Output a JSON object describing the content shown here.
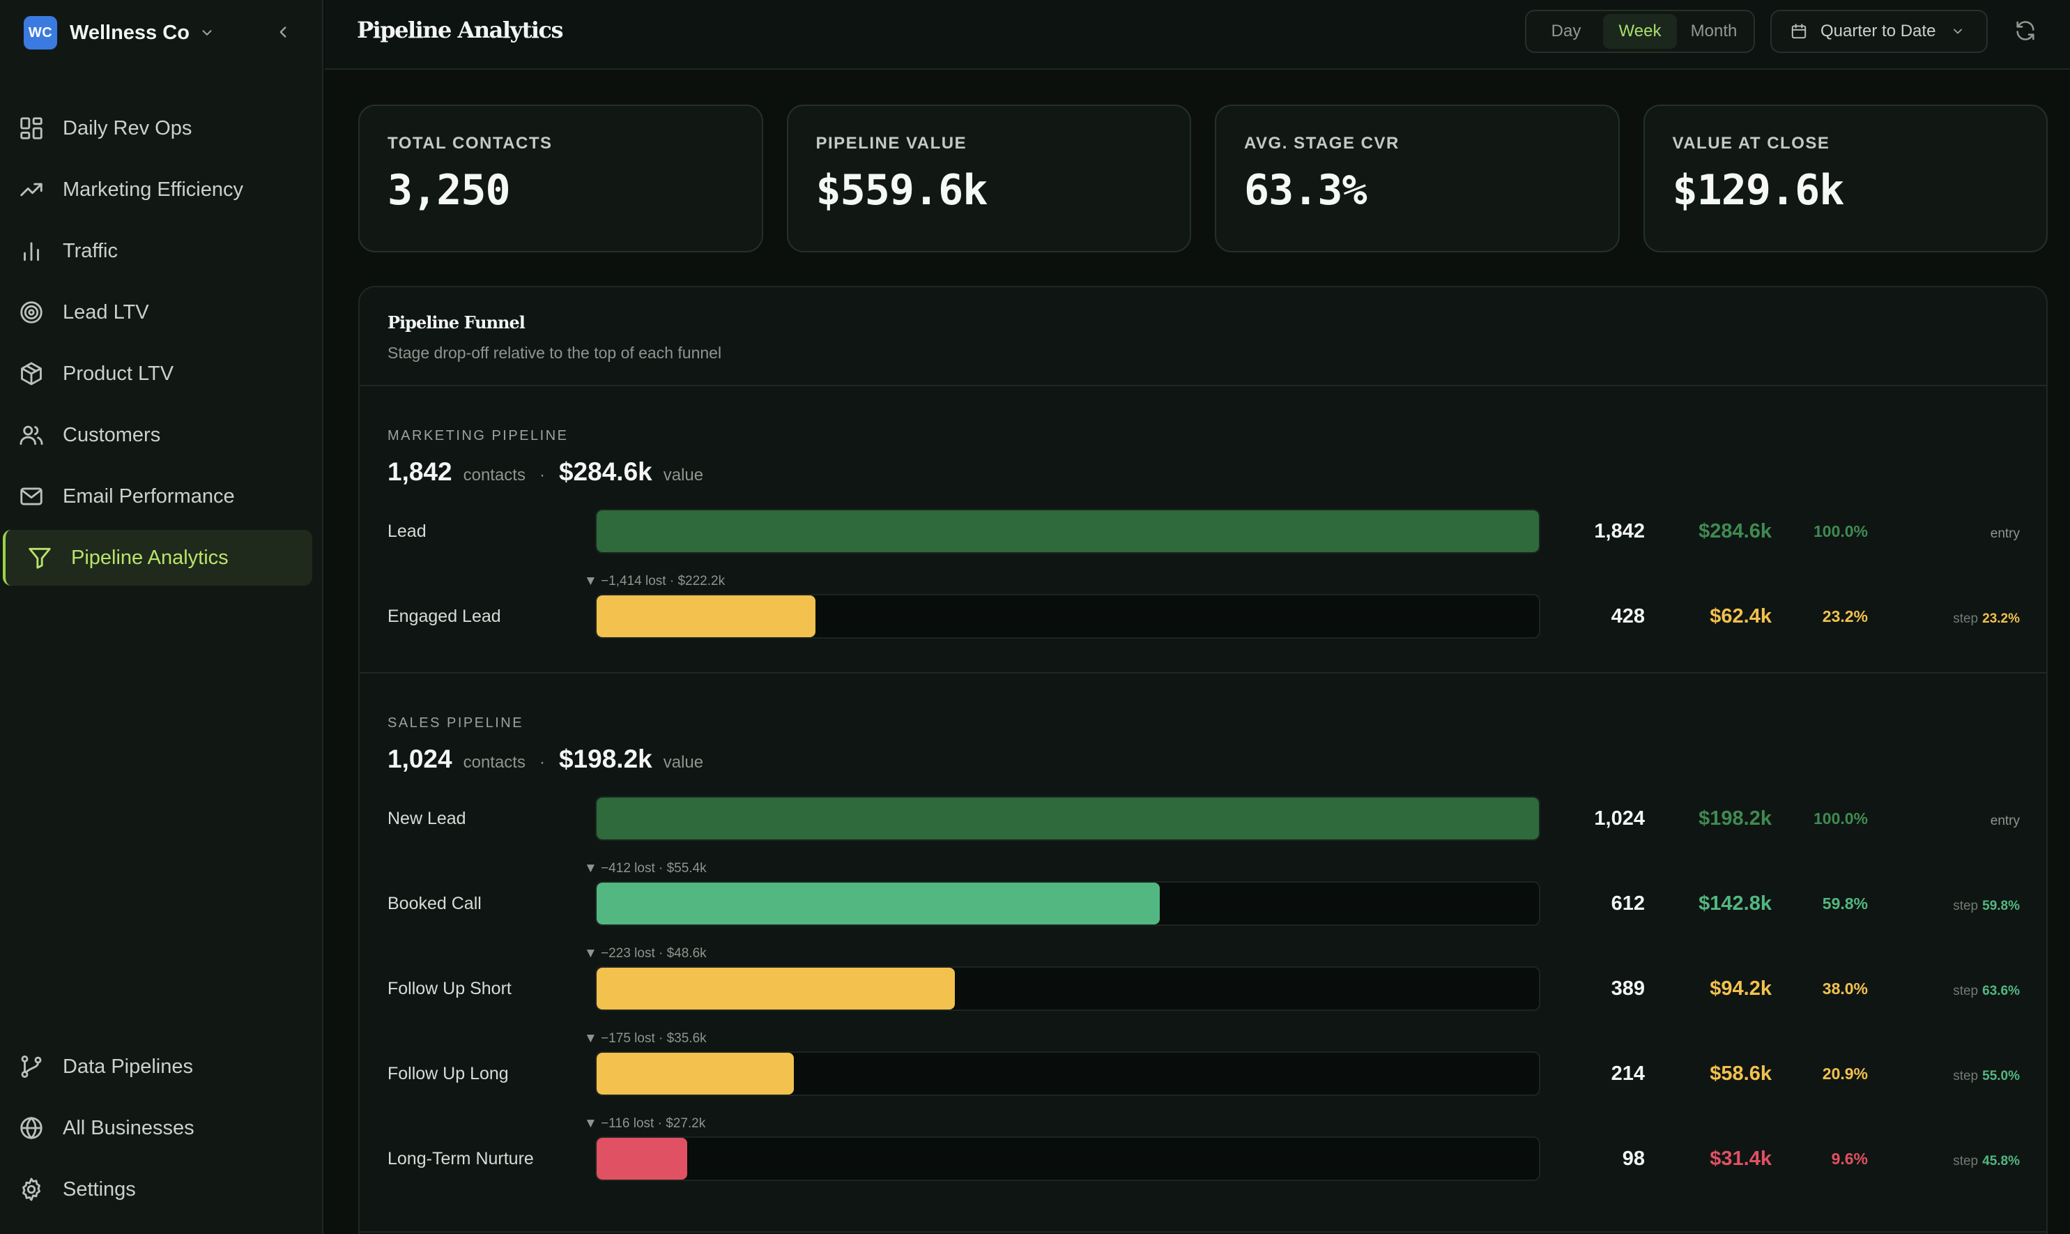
{
  "brand": {
    "initials": "WC",
    "name": "Wellness Co"
  },
  "nav": {
    "items": [
      {
        "label": "Daily Rev Ops",
        "icon": "dashboard-grid-icon"
      },
      {
        "label": "Marketing Efficiency",
        "icon": "trending-up-icon"
      },
      {
        "label": "Traffic",
        "icon": "bar-chart-icon"
      },
      {
        "label": "Lead LTV",
        "icon": "target-icon"
      },
      {
        "label": "Product LTV",
        "icon": "package-icon"
      },
      {
        "label": "Customers",
        "icon": "users-icon"
      },
      {
        "label": "Email Performance",
        "icon": "mail-icon"
      },
      {
        "label": "Pipeline Analytics",
        "icon": "funnel-icon",
        "active": true
      }
    ],
    "bottom": [
      {
        "label": "Data Pipelines",
        "icon": "git-branch-icon"
      },
      {
        "label": "All Businesses",
        "icon": "globe-icon"
      },
      {
        "label": "Settings",
        "icon": "gear-icon"
      }
    ]
  },
  "header": {
    "title": "Pipeline Analytics",
    "granularity": {
      "options": [
        "Day",
        "Week",
        "Month"
      ],
      "selected": "Week"
    },
    "date_range": "Quarter to Date"
  },
  "kpis": [
    {
      "label": "TOTAL CONTACTS",
      "value": "3,250"
    },
    {
      "label": "PIPELINE VALUE",
      "value": "$559.6k"
    },
    {
      "label": "AVG. STAGE CVR",
      "value": "63.3%"
    },
    {
      "label": "VALUE AT CLOSE",
      "value": "$129.6k"
    }
  ],
  "funnel": {
    "title": "Pipeline Funnel",
    "subtitle": "Stage drop-off relative to the top of each funnel",
    "contacts_unit": "contacts",
    "value_unit": "value",
    "separator": "·",
    "step_label": "step",
    "sections": [
      {
        "label": "MARKETING PIPELINE",
        "contacts": "1,842",
        "value": "$284.6k",
        "stages": [
          {
            "name": "Lead",
            "count": "1,842",
            "value": "$284.6k",
            "pct": "100.0%",
            "fill": 1.0,
            "color": "#2e6a3c",
            "value_color": "#3f8a52",
            "pct_color": "#3f8a52",
            "step": "entry"
          },
          {
            "name": "Engaged Lead",
            "count": "428",
            "value": "$62.4k",
            "pct": "23.2%",
            "fill": 0.232,
            "color": "#f2c14e",
            "value_color": "#f2c14e",
            "pct_color": "#f2c14e",
            "step": "23.2%",
            "step_color": "#f2c14e",
            "lost": "▼ −1,414 lost · $222.2k"
          }
        ]
      },
      {
        "label": "SALES PIPELINE",
        "contacts": "1,024",
        "value": "$198.2k",
        "stages": [
          {
            "name": "New Lead",
            "count": "1,024",
            "value": "$198.2k",
            "pct": "100.0%",
            "fill": 1.0,
            "color": "#2e6a3c",
            "value_color": "#3f8a52",
            "pct_color": "#3f8a52",
            "step": "entry"
          },
          {
            "name": "Booked Call",
            "count": "612",
            "value": "$142.8k",
            "pct": "59.8%",
            "fill": 0.598,
            "color": "#52b781",
            "value_color": "#52b781",
            "pct_color": "#52b781",
            "step": "59.8%",
            "step_color": "#52b781",
            "lost": "▼ −412 lost · $55.4k"
          },
          {
            "name": "Follow Up Short",
            "count": "389",
            "value": "$94.2k",
            "pct": "38.0%",
            "fill": 0.38,
            "color": "#f2c14e",
            "value_color": "#f2c14e",
            "pct_color": "#f2c14e",
            "step": "63.6%",
            "step_color": "#52b781",
            "lost": "▼ −223 lost · $48.6k"
          },
          {
            "name": "Follow Up Long",
            "count": "214",
            "value": "$58.6k",
            "pct": "20.9%",
            "fill": 0.209,
            "color": "#f2c14e",
            "value_color": "#f2c14e",
            "pct_color": "#f2c14e",
            "step": "55.0%",
            "step_color": "#52b781",
            "lost": "▼ −175 lost · $35.6k"
          },
          {
            "name": "Long-Term Nurture",
            "count": "98",
            "value": "$31.4k",
            "pct": "9.6%",
            "fill": 0.096,
            "color": "#e05163",
            "value_color": "#e05163",
            "pct_color": "#e05163",
            "step": "45.8%",
            "step_color": "#52b781",
            "lost": "▼ −116 lost · $27.2k"
          }
        ]
      }
    ]
  }
}
